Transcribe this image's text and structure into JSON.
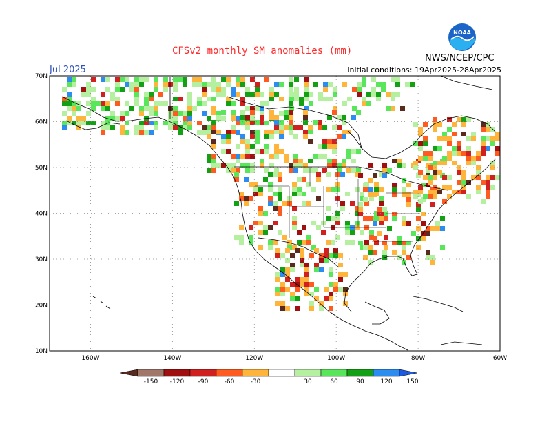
{
  "header": {
    "title": "CFSv2 monthly SM anomalies (mm)",
    "month": "Jul 2025",
    "initial_conditions": "Initial conditions: 19Apr2025-28Apr2025",
    "agency": "NWS/NCEP/CPC",
    "logo_text": "NOAA"
  },
  "map": {
    "lat_labels": [
      "70N",
      "60N",
      "50N",
      "40N",
      "30N",
      "20N",
      "10N"
    ],
    "lon_labels": [
      "160W",
      "140W",
      "120W",
      "100W",
      "80W",
      "60W"
    ],
    "lat_range": [
      10,
      70
    ],
    "lon_range": [
      -170,
      -60
    ],
    "grid": "dotted"
  },
  "legend": {
    "labels": [
      "-150",
      "-120",
      "-90",
      "-60",
      "-30",
      "30",
      "60",
      "90",
      "120",
      "150"
    ],
    "colors": [
      "#5a2a1e",
      "#a0786a",
      "#a01010",
      "#d02020",
      "#ff5a20",
      "#ffb43c",
      "#ffffff",
      "#b4f0a0",
      "#5ae65a",
      "#14a014",
      "#2d8cf0",
      "#1e5ae0"
    ]
  },
  "colors": {
    "title": "#ff2a2a",
    "month": "#2d4fbf",
    "dry_strong": "#5a2a1e",
    "dry": "#a01010",
    "wet": "#14a014",
    "wet_strong": "#2d8cf0"
  }
}
